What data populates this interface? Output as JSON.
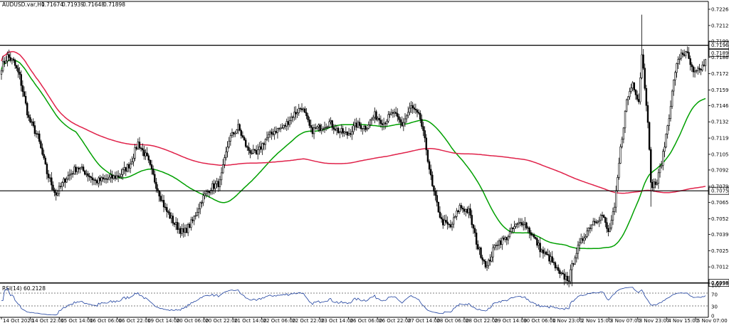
{
  "chart_data": {
    "type": "candlestick",
    "symbol": "AUDUSD.var,H1",
    "ohlc_readout": {
      "open": "0.71674",
      "high": "0.71939",
      "low": "0.71648",
      "close": "0.71898"
    },
    "y_ticks": [
      "0.72260",
      "0.72125",
      "0.71995",
      "0.71860",
      "0.71725",
      "0.71590",
      "0.71460",
      "0.71325",
      "0.71190",
      "0.71055",
      "0.70925",
      "0.70790",
      "0.70655",
      "0.70520",
      "0.70390",
      "0.70255",
      "0.70120",
      "0.69985"
    ],
    "ylim": [
      0.69985,
      0.72325
    ],
    "x_ticks": [
      "14 Oct 2020",
      "14 Oct 22:00",
      "15 Oct 14:00",
      "16 Oct 06:00",
      "16 Oct 22:00",
      "19 Oct 14:00",
      "20 Oct 06:00",
      "20 Oct 22:00",
      "21 Oct 14:00",
      "22 Oct 06:00",
      "22 Oct 22:00",
      "23 Oct 14:00",
      "26 Oct 06:00",
      "26 Oct 22:00",
      "27 Oct 14:00",
      "28 Oct 06:00",
      "28 Oct 22:00",
      "29 Oct 14:00",
      "30 Oct 06:00",
      "1 Nov 23:00",
      "2 Nov 15:00",
      "3 Nov 07:00",
      "3 Nov 23:00",
      "4 Nov 15:00",
      "5 Nov 07:00"
    ],
    "horizontal_lines": [
      {
        "label": "0.71961",
        "value": 0.71961,
        "color": "#000000"
      },
      {
        "label": "0.70752",
        "value": 0.70752,
        "color": "#000000"
      },
      {
        "label": "0.69987",
        "value": 0.69987,
        "color": "#000000"
      }
    ],
    "current_price": {
      "label": "0.71898",
      "value": 0.71898
    },
    "anchors": [
      [
        0,
        0.7178
      ],
      [
        4,
        0.7187
      ],
      [
        8,
        0.7182
      ],
      [
        12,
        0.717
      ],
      [
        18,
        0.7135
      ],
      [
        24,
        0.712
      ],
      [
        30,
        0.709
      ],
      [
        36,
        0.7072
      ],
      [
        42,
        0.7085
      ],
      [
        50,
        0.7095
      ],
      [
        56,
        0.709
      ],
      [
        62,
        0.7083
      ],
      [
        70,
        0.7085
      ],
      [
        78,
        0.7088
      ],
      [
        85,
        0.7098
      ],
      [
        90,
        0.7115
      ],
      [
        96,
        0.7102
      ],
      [
        102,
        0.708
      ],
      [
        108,
        0.706
      ],
      [
        114,
        0.7048
      ],
      [
        120,
        0.704
      ],
      [
        126,
        0.705
      ],
      [
        132,
        0.7068
      ],
      [
        138,
        0.7078
      ],
      [
        144,
        0.7082
      ],
      [
        150,
        0.7118
      ],
      [
        156,
        0.7128
      ],
      [
        162,
        0.711
      ],
      [
        168,
        0.7105
      ],
      [
        174,
        0.7118
      ],
      [
        180,
        0.7125
      ],
      [
        186,
        0.7128
      ],
      [
        192,
        0.7138
      ],
      [
        198,
        0.7145
      ],
      [
        204,
        0.7125
      ],
      [
        210,
        0.7128
      ],
      [
        216,
        0.7132
      ],
      [
        222,
        0.7125
      ],
      [
        228,
        0.7122
      ],
      [
        234,
        0.713
      ],
      [
        240,
        0.7128
      ],
      [
        246,
        0.7138
      ],
      [
        252,
        0.7132
      ],
      [
        258,
        0.714
      ],
      [
        264,
        0.713
      ],
      [
        270,
        0.7145
      ],
      [
        276,
        0.7135
      ],
      [
        280,
        0.711
      ],
      [
        284,
        0.7078
      ],
      [
        290,
        0.705
      ],
      [
        296,
        0.7045
      ],
      [
        302,
        0.7062
      ],
      [
        308,
        0.7058
      ],
      [
        314,
        0.7028
      ],
      [
        320,
        0.7012
      ],
      [
        326,
        0.7032
      ],
      [
        332,
        0.7035
      ],
      [
        338,
        0.7045
      ],
      [
        344,
        0.705
      ],
      [
        350,
        0.7038
      ],
      [
        356,
        0.7025
      ],
      [
        362,
        0.7018
      ],
      [
        368,
        0.7005
      ],
      [
        374,
        0.7002
      ],
      [
        378,
        0.7022
      ],
      [
        384,
        0.7038
      ],
      [
        390,
        0.705
      ],
      [
        396,
        0.7055
      ],
      [
        400,
        0.704
      ],
      [
        404,
        0.706
      ],
      [
        408,
        0.711
      ],
      [
        412,
        0.715
      ],
      [
        416,
        0.7165
      ],
      [
        420,
        0.715
      ],
      [
        422,
        0.719
      ],
      [
        426,
        0.7135
      ],
      [
        428,
        0.708
      ],
      [
        432,
        0.7082
      ],
      [
        436,
        0.7105
      ],
      [
        440,
        0.7138
      ],
      [
        444,
        0.7175
      ],
      [
        448,
        0.719
      ],
      [
        452,
        0.7188
      ],
      [
        456,
        0.7172
      ],
      [
        460,
        0.7175
      ],
      [
        464,
        0.7182
      ]
    ],
    "series": [
      {
        "name": "",
        "kind": "moving-average",
        "color": "#00a000",
        "period": 50
      },
      {
        "name": "",
        "kind": "moving-average",
        "color": "#e0224a",
        "period": 200
      }
    ],
    "rsi": {
      "label": "RSI(14) 60.2128",
      "levels": [
        "100",
        "70",
        "30",
        "0"
      ],
      "color": "#1c3f9e"
    }
  }
}
